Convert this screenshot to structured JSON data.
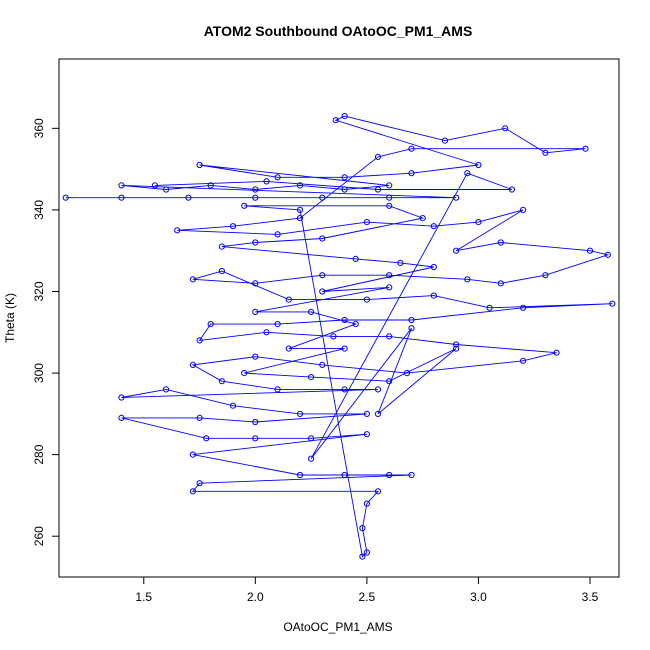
{
  "chart_data": {
    "type": "scatter",
    "title": "ATOM2 Southbound OAtoOC_PM1_AMS",
    "xlabel": "OAtoOC_PM1_AMS",
    "ylabel": "Theta (K)",
    "xlim": [
      1.12,
      3.63
    ],
    "ylim": [
      250,
      377
    ],
    "xticks": [
      1.5,
      2.0,
      2.5,
      3.0,
      3.5
    ],
    "yticks": [
      260,
      280,
      300,
      320,
      340,
      360
    ],
    "grid": false,
    "legend": "none",
    "series_color": "#0000ff",
    "marker": "open-circle",
    "connected": true,
    "points": [
      [
        1.15,
        343
      ],
      [
        1.4,
        343
      ],
      [
        1.7,
        343
      ],
      [
        2.0,
        343
      ],
      [
        2.3,
        343
      ],
      [
        2.6,
        343
      ],
      [
        2.9,
        343
      ],
      [
        1.4,
        346
      ],
      [
        1.6,
        345
      ],
      [
        1.8,
        346
      ],
      [
        2.0,
        345
      ],
      [
        2.2,
        346
      ],
      [
        2.4,
        345
      ],
      [
        2.6,
        346
      ],
      [
        1.75,
        351
      ],
      [
        2.1,
        348
      ],
      [
        2.4,
        348
      ],
      [
        2.7,
        349
      ],
      [
        3.0,
        351
      ],
      [
        2.36,
        362
      ],
      [
        2.4,
        363
      ],
      [
        2.85,
        357
      ],
      [
        3.12,
        360
      ],
      [
        3.3,
        354
      ],
      [
        3.48,
        355
      ],
      [
        2.7,
        355
      ],
      [
        2.55,
        353
      ],
      [
        2.2,
        338
      ],
      [
        1.9,
        336
      ],
      [
        1.65,
        335
      ],
      [
        2.1,
        334
      ],
      [
        2.5,
        337
      ],
      [
        2.8,
        336
      ],
      [
        3.0,
        337
      ],
      [
        3.2,
        340
      ],
      [
        2.9,
        330
      ],
      [
        3.1,
        332
      ],
      [
        3.5,
        330
      ],
      [
        3.58,
        329
      ],
      [
        3.3,
        324
      ],
      [
        3.1,
        322
      ],
      [
        2.95,
        323
      ],
      [
        2.6,
        324
      ],
      [
        2.3,
        324
      ],
      [
        2.0,
        322
      ],
      [
        1.72,
        323
      ],
      [
        1.85,
        325
      ],
      [
        2.15,
        318
      ],
      [
        2.5,
        318
      ],
      [
        2.8,
        319
      ],
      [
        3.05,
        316
      ],
      [
        3.6,
        317
      ],
      [
        3.2,
        316
      ],
      [
        2.7,
        313
      ],
      [
        2.4,
        313
      ],
      [
        2.1,
        312
      ],
      [
        1.8,
        312
      ],
      [
        1.75,
        308
      ],
      [
        2.05,
        310
      ],
      [
        2.35,
        309
      ],
      [
        2.6,
        309
      ],
      [
        2.9,
        307
      ],
      [
        3.35,
        305
      ],
      [
        3.2,
        303
      ],
      [
        2.68,
        300
      ],
      [
        2.3,
        302
      ],
      [
        2.0,
        304
      ],
      [
        1.72,
        302
      ],
      [
        1.85,
        298
      ],
      [
        2.1,
        296
      ],
      [
        2.4,
        296
      ],
      [
        2.55,
        296
      ],
      [
        1.4,
        294
      ],
      [
        1.6,
        296
      ],
      [
        1.9,
        292
      ],
      [
        2.2,
        290
      ],
      [
        2.5,
        290
      ],
      [
        2.0,
        288
      ],
      [
        1.75,
        289
      ],
      [
        1.4,
        289
      ],
      [
        1.78,
        284
      ],
      [
        2.0,
        284
      ],
      [
        2.25,
        284
      ],
      [
        2.5,
        285
      ],
      [
        1.72,
        280
      ],
      [
        2.2,
        275
      ],
      [
        2.4,
        275
      ],
      [
        2.6,
        275
      ],
      [
        2.7,
        275
      ],
      [
        1.75,
        273
      ],
      [
        1.72,
        271
      ],
      [
        2.55,
        271
      ],
      [
        2.5,
        268
      ],
      [
        2.48,
        262
      ],
      [
        2.5,
        256
      ],
      [
        2.48,
        255
      ],
      [
        2.2,
        340
      ],
      [
        1.95,
        341
      ],
      [
        2.6,
        341
      ],
      [
        2.75,
        338
      ],
      [
        2.3,
        333
      ],
      [
        2.0,
        332
      ],
      [
        1.85,
        331
      ],
      [
        2.45,
        328
      ],
      [
        2.65,
        327
      ],
      [
        2.8,
        326
      ],
      [
        2.3,
        320
      ],
      [
        2.6,
        321
      ],
      [
        2.0,
        315
      ],
      [
        2.25,
        315
      ],
      [
        2.45,
        312
      ],
      [
        2.15,
        306
      ],
      [
        2.4,
        306
      ],
      [
        1.95,
        300
      ],
      [
        2.25,
        299
      ],
      [
        2.6,
        298
      ],
      [
        2.9,
        306
      ],
      [
        2.55,
        290
      ],
      [
        2.7,
        311
      ],
      [
        2.25,
        279
      ],
      [
        2.95,
        349
      ],
      [
        3.15,
        345
      ],
      [
        2.55,
        345
      ],
      [
        2.05,
        347
      ],
      [
        1.55,
        346
      ]
    ]
  }
}
